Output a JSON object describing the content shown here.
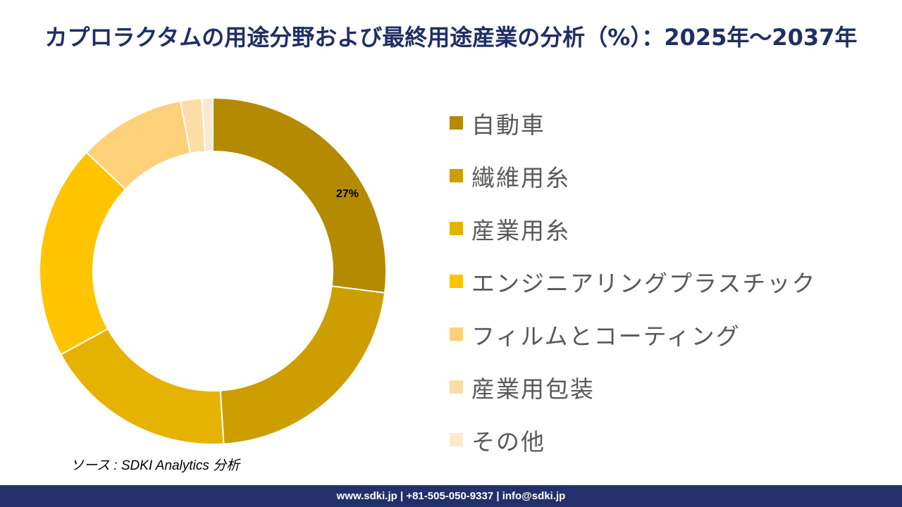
{
  "title": "カプロラクタムの用途分野および最終用途産業の分析（%）：2025年～2037年",
  "source": "ソース : SDKI Analytics 分析",
  "footer": "www.sdki.jp | +81-505-050-9337 | info@sdki.jp",
  "chart_data": {
    "type": "pie",
    "donut": true,
    "categories": [
      "自動車",
      "繊維用糸",
      "産業用糸",
      "エンジニアリングプラスチック",
      "フィルムとコーティング",
      "産業用包装",
      "その他"
    ],
    "values": [
      27,
      22,
      18,
      20,
      10,
      2,
      1
    ],
    "data_labels": [
      "27%",
      "",
      "",
      "",
      "",
      "",
      ""
    ],
    "colors": [
      "#b38a00",
      "#cc9e00",
      "#e6b200",
      "#ffc400",
      "#fdd17a",
      "#fddda6",
      "#fce8cc"
    ],
    "legend_position": "right"
  }
}
